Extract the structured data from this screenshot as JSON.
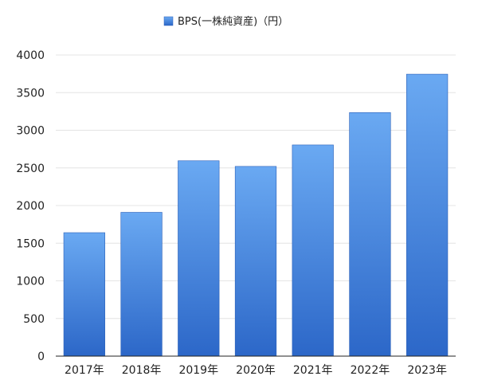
{
  "chart_data": {
    "type": "bar",
    "title": "",
    "xlabel": "",
    "ylabel": "",
    "categories": [
      "2017年",
      "2018年",
      "2019年",
      "2020年",
      "2021年",
      "2022年",
      "2023年"
    ],
    "series": [
      {
        "name": "BPS(一株純資産)（円）",
        "values": [
          1640,
          1910,
          2595,
          2520,
          2805,
          3235,
          3745
        ]
      }
    ],
    "ylim": [
      0,
      4000
    ],
    "yticks": [
      0,
      500,
      1000,
      1500,
      2000,
      2500,
      3000,
      3500,
      4000
    ],
    "grid": true,
    "legend": "top-center",
    "colors": {
      "bar_top": "#6aa9f2",
      "bar_bottom": "#2c67c8",
      "bar_edge": "#2a5fb8",
      "grid": "#e4e4e4",
      "axis": "#222222"
    }
  }
}
